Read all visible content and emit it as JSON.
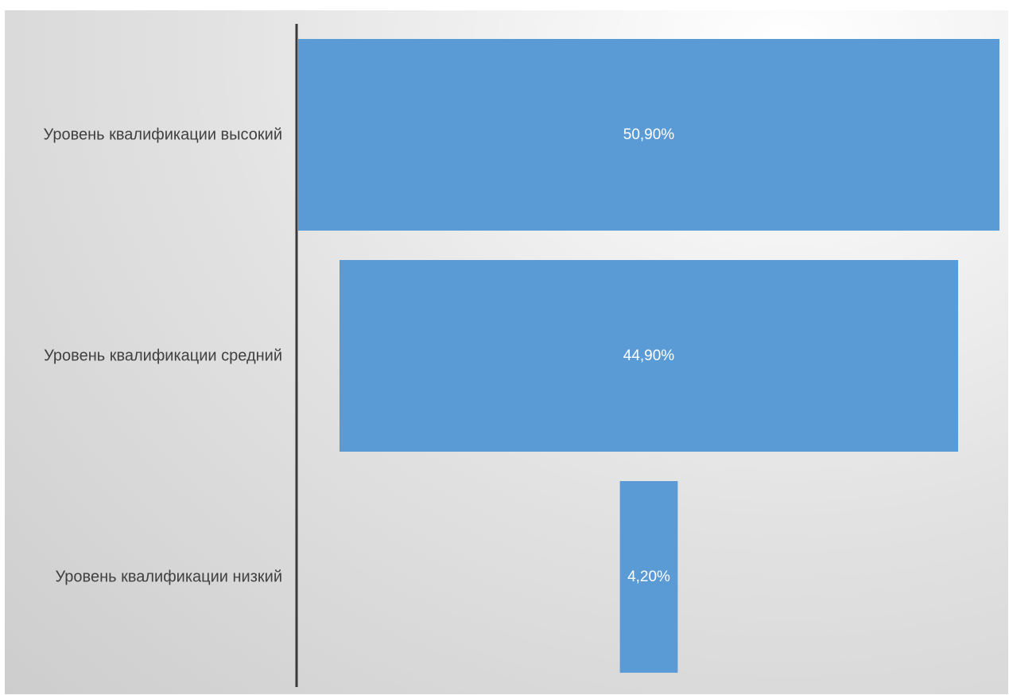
{
  "chart_data": {
    "type": "bar",
    "subtype": "funnel",
    "categories": [
      "Уровень квалификации высокий",
      "Уровень квалификации средний",
      "Уровень квалификации низкий"
    ],
    "values": [
      50.9,
      44.9,
      4.2
    ],
    "value_labels": [
      "50,90%",
      "44,90%",
      "4,20%"
    ],
    "title": "",
    "xlabel": "",
    "ylabel": "",
    "bar_color": "#5b9bd5",
    "axis_color": "#3a3a3a",
    "grid": false,
    "legend": "none"
  }
}
